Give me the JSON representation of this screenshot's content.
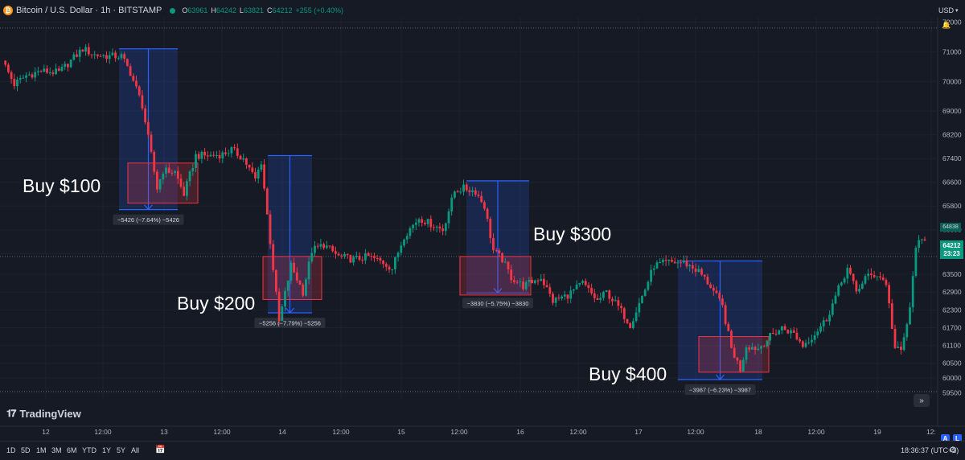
{
  "header": {
    "symbol": "Bitcoin / U.S. Dollar · 1h · BITSTAMP",
    "coin_glyph": "₿",
    "ohlc": [
      {
        "k": "O",
        "v": "63961"
      },
      {
        "k": "H",
        "v": "64242"
      },
      {
        "k": "L",
        "v": "63821"
      },
      {
        "k": "C",
        "v": "64212"
      }
    ],
    "change": "+255 (+0.40%)"
  },
  "price_axis": {
    "currency_label": "USD",
    "current_price": "64212",
    "countdown": "23:23",
    "secondary_tag": "64838"
  },
  "logo_text": "TradingView",
  "buttons": {
    "auto": "A",
    "log": "L",
    "goto_realtime": "»"
  },
  "toolbar": {
    "timeframes": [
      "1D",
      "5D",
      "1M",
      "3M",
      "6M",
      "YTD",
      "1Y",
      "5Y",
      "All"
    ],
    "clock": "18:36:37 (UTC+3)"
  },
  "colors": {
    "background": "#161a25",
    "up": "#089981",
    "down": "#f23645",
    "measure_blue": "#2962ff",
    "buy_zone_red": "#f23645"
  },
  "chart_data": {
    "type": "candlestick",
    "interval": "1h",
    "yticks": [
      72000,
      71000,
      70000,
      69000,
      68200,
      67400,
      66600,
      65800,
      65000,
      64200,
      63500,
      62900,
      62300,
      61700,
      61100,
      60500,
      60000,
      59500
    ],
    "ylim": [
      59300,
      72150
    ],
    "x_tick_labels": [
      "12",
      "12:00",
      "13",
      "12:00",
      "14",
      "12:00",
      "15",
      "12:00",
      "16",
      "12:00",
      "17",
      "12:00",
      "18",
      "12:00",
      "19",
      "12:"
    ],
    "price_path": [
      {
        "i": 0,
        "p": 70700
      },
      {
        "i": 4,
        "p": 69900
      },
      {
        "i": 8,
        "p": 70200
      },
      {
        "i": 13,
        "p": 70350
      },
      {
        "i": 19,
        "p": 70300
      },
      {
        "i": 23,
        "p": 70700
      },
      {
        "i": 27,
        "p": 71100
      },
      {
        "i": 31,
        "p": 70900
      },
      {
        "i": 36,
        "p": 70850
      },
      {
        "i": 40,
        "p": 70850
      },
      {
        "i": 43,
        "p": 70300
      },
      {
        "i": 47,
        "p": 69200
      },
      {
        "i": 52,
        "p": 66400
      },
      {
        "i": 54,
        "p": 67000
      },
      {
        "i": 58,
        "p": 66950
      },
      {
        "i": 61,
        "p": 66200
      },
      {
        "i": 65,
        "p": 67500
      },
      {
        "i": 70,
        "p": 67500
      },
      {
        "i": 74,
        "p": 67550
      },
      {
        "i": 77,
        "p": 67700
      },
      {
        "i": 81,
        "p": 67400
      },
      {
        "i": 85,
        "p": 66700
      },
      {
        "i": 87,
        "p": 67300
      },
      {
        "i": 93,
        "p": 61900
      },
      {
        "i": 97,
        "p": 63800
      },
      {
        "i": 101,
        "p": 62900
      },
      {
        "i": 104,
        "p": 64300
      },
      {
        "i": 108,
        "p": 64500
      },
      {
        "i": 113,
        "p": 64100
      },
      {
        "i": 118,
        "p": 64000
      },
      {
        "i": 123,
        "p": 64100
      },
      {
        "i": 128,
        "p": 63900
      },
      {
        "i": 131,
        "p": 63700
      },
      {
        "i": 135,
        "p": 64800
      },
      {
        "i": 140,
        "p": 65400
      },
      {
        "i": 144,
        "p": 65200
      },
      {
        "i": 148,
        "p": 65000
      },
      {
        "i": 152,
        "p": 66300
      },
      {
        "i": 155,
        "p": 66400
      },
      {
        "i": 159,
        "p": 66300
      },
      {
        "i": 162,
        "p": 65800
      },
      {
        "i": 165,
        "p": 64300
      },
      {
        "i": 168,
        "p": 64000
      },
      {
        "i": 171,
        "p": 63400
      },
      {
        "i": 175,
        "p": 63100
      },
      {
        "i": 181,
        "p": 63400
      },
      {
        "i": 185,
        "p": 62600
      },
      {
        "i": 190,
        "p": 62800
      },
      {
        "i": 195,
        "p": 63200
      },
      {
        "i": 200,
        "p": 62600
      },
      {
        "i": 203,
        "p": 62900
      },
      {
        "i": 207,
        "p": 62400
      },
      {
        "i": 211,
        "p": 61800
      },
      {
        "i": 216,
        "p": 63000
      },
      {
        "i": 219,
        "p": 63800
      },
      {
        "i": 224,
        "p": 63900
      },
      {
        "i": 229,
        "p": 63900
      },
      {
        "i": 234,
        "p": 63600
      },
      {
        "i": 238,
        "p": 63100
      },
      {
        "i": 242,
        "p": 62400
      },
      {
        "i": 245,
        "p": 61000
      },
      {
        "i": 248,
        "p": 60300
      },
      {
        "i": 250,
        "p": 61100
      },
      {
        "i": 254,
        "p": 61000
      },
      {
        "i": 258,
        "p": 61400
      },
      {
        "i": 262,
        "p": 61700
      },
      {
        "i": 266,
        "p": 61500
      },
      {
        "i": 269,
        "p": 61100
      },
      {
        "i": 273,
        "p": 61500
      },
      {
        "i": 277,
        "p": 62000
      },
      {
        "i": 281,
        "p": 63000
      },
      {
        "i": 284,
        "p": 63700
      },
      {
        "i": 287,
        "p": 62900
      },
      {
        "i": 290,
        "p": 63400
      },
      {
        "i": 294,
        "p": 63500
      },
      {
        "i": 297,
        "p": 63200
      },
      {
        "i": 300,
        "p": 61000
      },
      {
        "i": 302,
        "p": 60900
      },
      {
        "i": 305,
        "p": 62300
      },
      {
        "i": 307,
        "p": 64500
      },
      {
        "i": 310,
        "p": 64600
      }
    ],
    "price_lines": [
      {
        "price": 71800,
        "style": "dotted"
      },
      {
        "price": 64100,
        "style": "dotted"
      },
      {
        "price": 59550,
        "style": "dotted"
      }
    ],
    "measurements": [
      {
        "from_price": 71100,
        "to_price": 65680,
        "label": "−5426 (−7.64%) −5426"
      },
      {
        "from_price": 67500,
        "to_price": 62200,
        "label": "−5256 (−7.79%) −5256"
      },
      {
        "from_price": 66650,
        "to_price": 62870,
        "label": "−3830 (−5.75%) −3830"
      },
      {
        "from_price": 63950,
        "to_price": 59950,
        "label": "−3987 (−6.23%) −3987"
      }
    ],
    "buy_zones": [
      {
        "top": 67250,
        "bottom": 65900
      },
      {
        "top": 64100,
        "bottom": 62650
      },
      {
        "top": 64100,
        "bottom": 62800
      },
      {
        "top": 61400,
        "bottom": 60200
      }
    ],
    "annotations": [
      {
        "text": "Buy $100"
      },
      {
        "text": "Buy $200"
      },
      {
        "text": "Buy $300"
      },
      {
        "text": "Buy $400"
      }
    ]
  }
}
